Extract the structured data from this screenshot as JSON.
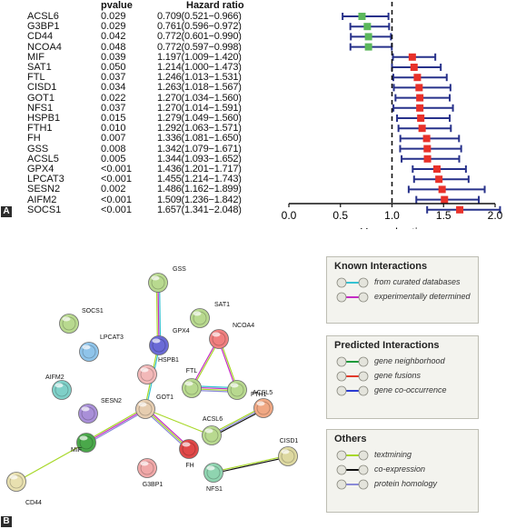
{
  "panel_a": {
    "label": "A",
    "headers": {
      "pvalue": "pvalue",
      "hazard_ratio": "Hazard ratio"
    },
    "rows": [
      {
        "gene": "ACSL6",
        "pvalue": "0.029",
        "hr_text": "0.709(0.521−0.966)",
        "hr": 0.709,
        "lo": 0.521,
        "hi": 0.966,
        "color": "#5cb85c"
      },
      {
        "gene": "G3BP1",
        "pvalue": "0.029",
        "hr_text": "0.761(0.596−0.972)",
        "hr": 0.761,
        "lo": 0.596,
        "hi": 0.972,
        "color": "#5cb85c"
      },
      {
        "gene": "CD44",
        "pvalue": "0.042",
        "hr_text": "0.772(0.601−0.990)",
        "hr": 0.772,
        "lo": 0.601,
        "hi": 0.99,
        "color": "#5cb85c"
      },
      {
        "gene": "NCOA4",
        "pvalue": "0.048",
        "hr_text": "0.772(0.597−0.998)",
        "hr": 0.772,
        "lo": 0.597,
        "hi": 0.998,
        "color": "#5cb85c"
      },
      {
        "gene": "MIF",
        "pvalue": "0.039",
        "hr_text": "1.197(1.009−1.420)",
        "hr": 1.197,
        "lo": 1.009,
        "hi": 1.42,
        "color": "#e8312a"
      },
      {
        "gene": "SAT1",
        "pvalue": "0.050",
        "hr_text": "1.214(1.000−1.473)",
        "hr": 1.214,
        "lo": 1.0,
        "hi": 1.473,
        "color": "#e8312a"
      },
      {
        "gene": "FTL",
        "pvalue": "0.037",
        "hr_text": "1.246(1.013−1.531)",
        "hr": 1.246,
        "lo": 1.013,
        "hi": 1.531,
        "color": "#e8312a"
      },
      {
        "gene": "CISD1",
        "pvalue": "0.034",
        "hr_text": "1.263(1.018−1.567)",
        "hr": 1.263,
        "lo": 1.018,
        "hi": 1.567,
        "color": "#e8312a"
      },
      {
        "gene": "GOT1",
        "pvalue": "0.022",
        "hr_text": "1.270(1.034−1.560)",
        "hr": 1.27,
        "lo": 1.034,
        "hi": 1.56,
        "color": "#e8312a"
      },
      {
        "gene": "NFS1",
        "pvalue": "0.037",
        "hr_text": "1.270(1.014−1.591)",
        "hr": 1.27,
        "lo": 1.014,
        "hi": 1.591,
        "color": "#e8312a"
      },
      {
        "gene": "HSPB1",
        "pvalue": "0.015",
        "hr_text": "1.279(1.049−1.560)",
        "hr": 1.279,
        "lo": 1.049,
        "hi": 1.56,
        "color": "#e8312a"
      },
      {
        "gene": "FTH1",
        "pvalue": "0.010",
        "hr_text": "1.292(1.063−1.571)",
        "hr": 1.292,
        "lo": 1.063,
        "hi": 1.571,
        "color": "#e8312a"
      },
      {
        "gene": "FH",
        "pvalue": "0.007",
        "hr_text": "1.336(1.081−1.650)",
        "hr": 1.336,
        "lo": 1.081,
        "hi": 1.65,
        "color": "#e8312a"
      },
      {
        "gene": "GSS",
        "pvalue": "0.008",
        "hr_text": "1.342(1.079−1.671)",
        "hr": 1.342,
        "lo": 1.079,
        "hi": 1.671,
        "color": "#e8312a"
      },
      {
        "gene": "ACSL5",
        "pvalue": "0.005",
        "hr_text": "1.344(1.093−1.652)",
        "hr": 1.344,
        "lo": 1.093,
        "hi": 1.652,
        "color": "#e8312a"
      },
      {
        "gene": "GPX4",
        "pvalue": "<0.001",
        "hr_text": "1.436(1.201−1.717)",
        "hr": 1.436,
        "lo": 1.201,
        "hi": 1.717,
        "color": "#e8312a"
      },
      {
        "gene": "LPCAT3",
        "pvalue": "<0.001",
        "hr_text": "1.455(1.214−1.743)",
        "hr": 1.455,
        "lo": 1.214,
        "hi": 1.743,
        "color": "#e8312a"
      },
      {
        "gene": "SESN2",
        "pvalue": "0.002",
        "hr_text": "1.486(1.162−1.899)",
        "hr": 1.486,
        "lo": 1.162,
        "hi": 1.899,
        "color": "#e8312a"
      },
      {
        "gene": "AIFM2",
        "pvalue": "<0.001",
        "hr_text": "1.509(1.236−1.842)",
        "hr": 1.509,
        "lo": 1.236,
        "hi": 1.842,
        "color": "#e8312a"
      },
      {
        "gene": "SOCS1",
        "pvalue": "<0.001",
        "hr_text": "1.657(1.341−2.048)",
        "hr": 1.657,
        "lo": 1.341,
        "hi": 2.048,
        "color": "#e8312a"
      }
    ],
    "axis": {
      "xlabel": "Hazard ratio",
      "xlim": [
        0.0,
        2.0
      ],
      "ticks": [
        "0.0",
        "0.5",
        "1.0",
        "1.5",
        "2.0"
      ],
      "reference_line": 1.0
    }
  },
  "panel_b": {
    "label": "B",
    "nodes": [
      {
        "id": "GSS",
        "color": "#b8d98f"
      },
      {
        "id": "SOCS1",
        "color": "#b8d98f"
      },
      {
        "id": "SAT1",
        "color": "#b8d98f"
      },
      {
        "id": "LPCAT3",
        "color": "#8fc4ea"
      },
      {
        "id": "GPX4",
        "color": "#6a6ad6"
      },
      {
        "id": "NCOA4",
        "color": "#f07f7f"
      },
      {
        "id": "HSPB1",
        "color": "#f2b8b8"
      },
      {
        "id": "AIFM2",
        "color": "#7fd0c8"
      },
      {
        "id": "FTL",
        "color": "#b8d98f"
      },
      {
        "id": "FTH1",
        "color": "#b8d98f"
      },
      {
        "id": "SESN2",
        "color": "#a98fd8"
      },
      {
        "id": "GOT1",
        "color": "#e6cdb0"
      },
      {
        "id": "ACSL6",
        "color": "#b8d98f"
      },
      {
        "id": "ACSL5",
        "color": "#f0a884"
      },
      {
        "id": "MIF",
        "color": "#4aa84a"
      },
      {
        "id": "FH",
        "color": "#e04848"
      },
      {
        "id": "G3BP1",
        "color": "#f0a8a8"
      },
      {
        "id": "NFS1",
        "color": "#8fd4b0"
      },
      {
        "id": "CISD1",
        "color": "#ddd8a0"
      },
      {
        "id": "CD44",
        "color": "#e8e0b0"
      }
    ],
    "legend": {
      "known": {
        "title": "Known Interactions",
        "items": [
          {
            "text": "from curated databases",
            "color": "#35c2d2"
          },
          {
            "text": "experimentally determined",
            "color": "#c42cc4"
          }
        ]
      },
      "predicted": {
        "title": "Predicted Interactions",
        "items": [
          {
            "text": "gene neighborhood",
            "color": "#1c9a3a"
          },
          {
            "text": "gene fusions",
            "color": "#e23a2a"
          },
          {
            "text": "gene co-occurrence",
            "color": "#2a3ad2"
          }
        ]
      },
      "others": {
        "title": "Others",
        "items": [
          {
            "text": "textmining",
            "color": "#a8d82a"
          },
          {
            "text": "co-expression",
            "color": "#111111"
          },
          {
            "text": "protein homology",
            "color": "#8a8ad8"
          }
        ]
      }
    }
  }
}
